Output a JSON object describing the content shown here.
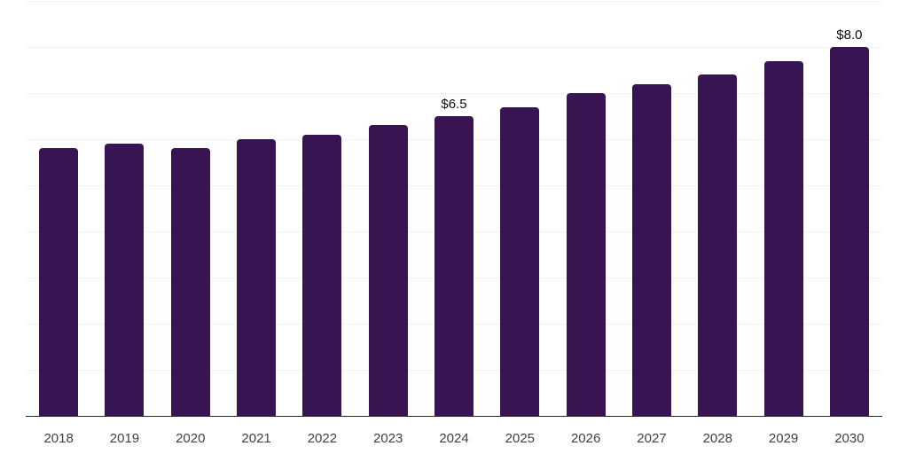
{
  "chart_data": {
    "type": "bar",
    "title": "",
    "xlabel": "",
    "ylabel": "",
    "categories": [
      "2018",
      "2019",
      "2020",
      "2021",
      "2022",
      "2023",
      "2024",
      "2025",
      "2026",
      "2027",
      "2028",
      "2029",
      "2030"
    ],
    "values": [
      5.8,
      5.9,
      5.8,
      6.0,
      6.1,
      6.3,
      6.5,
      6.7,
      7.0,
      7.2,
      7.4,
      7.7,
      8.0
    ],
    "data_labels": {
      "2024": "$6.5",
      "2030": "$8.0"
    },
    "ylim": [
      0,
      9
    ],
    "gridline_interval": 1,
    "grid": true,
    "legend_position": "none",
    "colors": {
      "bar": "#381452",
      "background": "#ffffff",
      "gridline": "#f2f2f2",
      "axis_line": "#2b2b2b",
      "tick_label": "#404040",
      "data_label": "#0d0d0d"
    }
  }
}
